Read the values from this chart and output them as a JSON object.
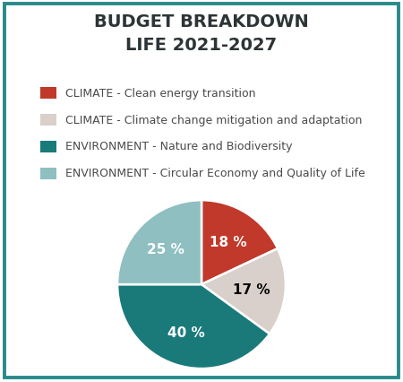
{
  "title_line1": "BUDGET BREAKDOWN",
  "title_line2": "LIFE 2021-2027",
  "slices": [
    18,
    17,
    40,
    25
  ],
  "labels": [
    "18 %",
    "17 %",
    "40 %",
    "25 %"
  ],
  "colors": [
    "#c0392b",
    "#d9d0cb",
    "#1a7a7a",
    "#8fbfc0"
  ],
  "legend_labels": [
    "CLIMATE - Clean energy transition",
    "CLIMATE - Climate change mitigation and adaptation",
    "ENVIRONMENT - Nature and Biodiversity",
    "ENVIRONMENT - Circular Economy and Quality of Life"
  ],
  "legend_colors": [
    "#c0392b",
    "#d9d0cb",
    "#1a7a7a",
    "#8fbfc0"
  ],
  "label_colors": [
    "white",
    "black",
    "white",
    "white"
  ],
  "border_color": "#2a8a8a",
  "background_color": "#ffffff",
  "title_color": "#2d3436",
  "legend_text_color": "#4a4a4a",
  "start_angle": 90,
  "label_fontsize": 11,
  "title_fontsize": 14,
  "legend_fontsize": 9
}
